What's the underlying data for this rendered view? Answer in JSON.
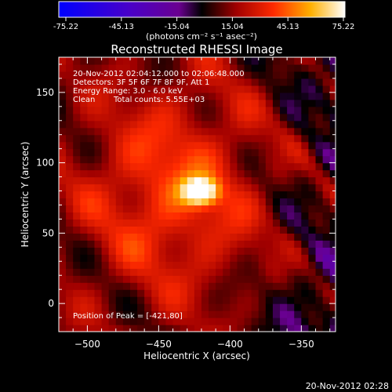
{
  "colorbar": {
    "ticks": [
      "-75.22",
      "-45.13",
      "-15.04",
      "15.04",
      "45.13",
      "75.22"
    ],
    "range": [
      -75.22,
      75.22
    ],
    "units": "(photons cm⁻² s⁻¹ asec⁻²)"
  },
  "title": "Reconstructed RHESSI Image",
  "annotations": {
    "time_range": "20-Nov-2012 02:04:12.000 to 02:06:48.000",
    "detectors": "Detectors: 3F 5F 6F 7F 8F 9F, Att 1",
    "energy": "Energy Range: 3.0 - 6.0 keV",
    "method": "Clean",
    "counts": "Total counts: 5.55E+03",
    "peak": "Position of Peak = [-421,80]"
  },
  "footer_timestamp": "20-Nov-2012 02:28",
  "chart_data": {
    "type": "heatmap",
    "title": "Reconstructed RHESSI Image",
    "xlabel": "Heliocentric X (arcsec)",
    "ylabel": "Heliocentric Y (arcsec)",
    "xlim": [
      -520,
      -326
    ],
    "ylim": [
      -20,
      175
    ],
    "xticks": [
      -500,
      -450,
      -400,
      -350
    ],
    "yticks": [
      0,
      50,
      100,
      150
    ],
    "peak": [
      -421,
      80
    ],
    "colormap": "blue-purple-red-yellow-white",
    "value_range": [
      -75.22,
      75.22
    ]
  }
}
